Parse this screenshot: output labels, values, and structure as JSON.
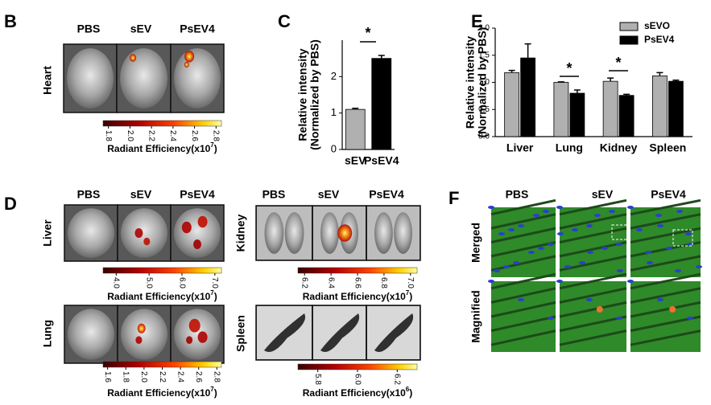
{
  "panel_b": {
    "letter": "B",
    "columns": [
      "PBS",
      "sEV",
      "PsEV4"
    ],
    "row": "Heart",
    "colorbar": {
      "lim": [
        1.75,
        2.85
      ],
      "ticks": [
        1.8,
        {
          "value": 2,
          "label": "2.0"
        },
        2.2,
        2.4,
        2.6,
        2.8
      ],
      "label": "Radiant Efficiency(x10",
      "exponent": "7",
      "label_end": ")"
    }
  },
  "panel_c": {
    "letter": "C"
  },
  "panel_d": {
    "letter": "D",
    "blocks": [
      {
        "columns": [
          "PBS",
          "sEV",
          "PsEV4"
        ],
        "row": "Liver",
        "colorbar": {
          "lim": [
            3.6,
            7.2
          ],
          "ticks": [
            {
              "value": 4,
              "label": "4.0"
            },
            {
              "value": 5,
              "label": "5.0"
            },
            {
              "value": 6,
              "label": "6.0"
            },
            {
              "value": 7,
              "label": "7.0"
            }
          ],
          "label": "Radiant Efficiency(x10",
          "exponent": "7",
          "label_end": ")"
        }
      },
      {
        "columns": [
          "PBS",
          "sEV",
          "PsEV4"
        ],
        "row": "Kidney",
        "colorbar": {
          "lim": [
            6.15,
            7.05
          ],
          "ticks": [
            6.2,
            6.4,
            6.6,
            6.8,
            {
              "value": 7,
              "label": "7.0"
            }
          ],
          "label": "Radiant Efficiency(x10",
          "exponent": "7",
          "label_end": ")"
        }
      },
      {
        "row": "Lung",
        "colorbar": {
          "lim": [
            1.55,
            2.85
          ],
          "ticks": [
            1.6,
            1.8,
            {
              "value": 2,
              "label": "2.0"
            },
            2.2,
            2.4,
            2.6,
            2.8
          ],
          "label": "Radiant Efficiency(x10",
          "exponent": "7",
          "label_end": ")"
        }
      },
      {
        "row": "Spleen",
        "colorbar": {
          "lim": [
            5.7,
            6.3
          ],
          "ticks": [
            5.8,
            {
              "value": 6,
              "label": "6.0"
            },
            6.2
          ],
          "label": "Radiant Efficiency(x10",
          "exponent": "6",
          "label_end": ")"
        }
      }
    ]
  },
  "panel_e": {
    "letter": "E"
  },
  "panel_f": {
    "letter": "F",
    "columns": [
      "PBS",
      "sEV",
      "PsEV4"
    ],
    "rows": [
      "Merged",
      "Magnified"
    ]
  },
  "chart_data": [
    {
      "type": "bar",
      "ylabel": [
        "Relative intensity",
        "(Normalized by PBS)"
      ],
      "categories": [
        "sEV",
        "PsEV4"
      ],
      "values": [
        1.1,
        2.5
      ],
      "errors": [
        0.03,
        0.08
      ],
      "colors": [
        "#b0b0b0",
        "#000000"
      ],
      "ylim": [
        0,
        3
      ],
      "yticks": [
        0,
        1,
        2
      ],
      "annotations": [
        "*"
      ]
    },
    {
      "type": "grouped_bar",
      "ylabel": [
        "Relative intensity",
        "(Normalized by PBS)"
      ],
      "categories": [
        "Liver",
        "Lung",
        "Kidney",
        "Spleen"
      ],
      "series": [
        {
          "name": "sEVO",
          "color": "#b0b0b0",
          "values": [
            1.18,
            1.0,
            1.02,
            1.12
          ],
          "errors": [
            0.04,
            0.01,
            0.06,
            0.06
          ]
        },
        {
          "name": "PsEV4",
          "color": "#000000",
          "values": [
            1.45,
            0.8,
            0.76,
            1.02
          ],
          "errors": [
            0.26,
            0.06,
            0.02,
            0.02
          ]
        }
      ],
      "ylim": [
        0,
        2
      ],
      "yticks": [
        {
          "value": 0,
          "label": "0.0"
        },
        0.5,
        {
          "value": 1,
          "label": "1.0"
        },
        1.5,
        {
          "value": 2,
          "label": "2.0"
        }
      ],
      "annotations": [
        "*",
        "*"
      ],
      "legend": "upper right"
    }
  ]
}
